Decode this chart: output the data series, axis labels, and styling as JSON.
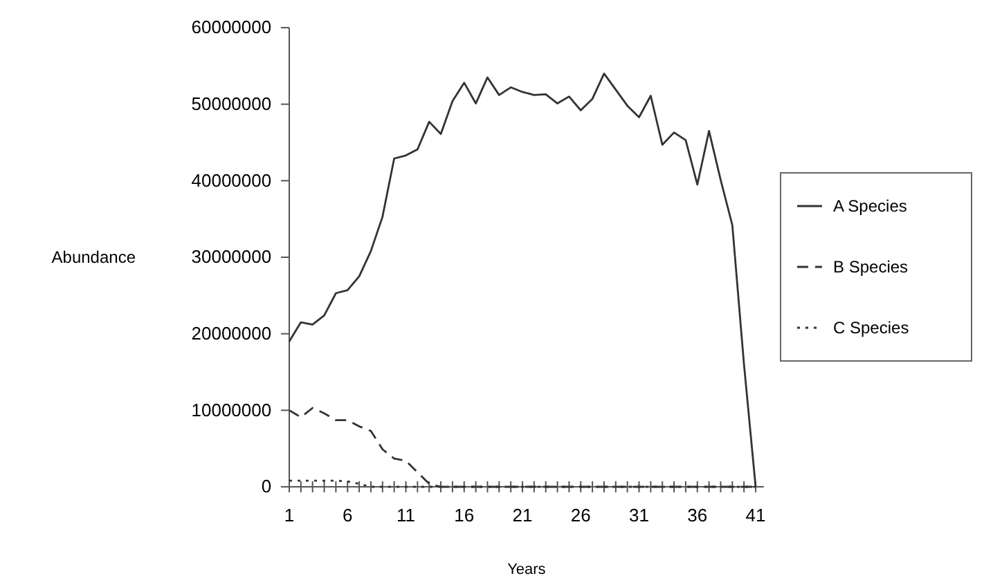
{
  "chart_data": {
    "type": "line",
    "xlabel": "Years",
    "ylabel": "Abundance",
    "x": [
      1,
      2,
      3,
      4,
      5,
      6,
      7,
      8,
      9,
      10,
      11,
      12,
      13,
      14,
      15,
      16,
      17,
      18,
      19,
      20,
      21,
      22,
      23,
      24,
      25,
      26,
      27,
      28,
      29,
      30,
      31,
      32,
      33,
      34,
      35,
      36,
      37,
      38,
      39,
      40,
      41
    ],
    "series": [
      {
        "name": "A Species",
        "color": "#333333",
        "line_style": "solid",
        "values": [
          19000000,
          21500000,
          21200000,
          22400000,
          25300000,
          25700000,
          27500000,
          30800000,
          35300000,
          42900000,
          43300000,
          44100000,
          47700000,
          46100000,
          50400000,
          52800000,
          50100000,
          53500000,
          51200000,
          52200000,
          51600000,
          51200000,
          51300000,
          50100000,
          51000000,
          49200000,
          50700000,
          54000000,
          51900000,
          49800000,
          48300000,
          51100000,
          44700000,
          46300000,
          45300000,
          39500000,
          46500000,
          40100000,
          34200000,
          16000000,
          0
        ]
      },
      {
        "name": "B Species",
        "color": "#333333",
        "line_style": "dashed",
        "values": [
          10000000,
          9100000,
          10300000,
          9600000,
          8700000,
          8700000,
          7900000,
          7300000,
          4900000,
          3700000,
          3400000,
          1900000,
          400000,
          0,
          0,
          0,
          0,
          0,
          0,
          0,
          0,
          0,
          0,
          0,
          0,
          0,
          0,
          0,
          0,
          0,
          0,
          0,
          0,
          0,
          0,
          0,
          0,
          0,
          0,
          0,
          0
        ]
      },
      {
        "name": "C Species",
        "color": "#333333",
        "line_style": "dotted",
        "values": [
          800000,
          800000,
          800000,
          800000,
          800000,
          700000,
          400000,
          0,
          0,
          0,
          0,
          0,
          0,
          0,
          0,
          0,
          0,
          0,
          0,
          0,
          0,
          0,
          0,
          0,
          0,
          0,
          0,
          0,
          0,
          0,
          0,
          0,
          0,
          0,
          0,
          0,
          0,
          0,
          0,
          0,
          0
        ]
      }
    ],
    "xlim": [
      1,
      41.7
    ],
    "xticks": [
      1,
      {
        "value": 2,
        "label": null
      },
      {
        "value": 3,
        "label": null
      },
      {
        "value": 4,
        "label": null
      },
      {
        "value": 5,
        "label": null
      },
      6,
      {
        "value": 7,
        "label": null
      },
      {
        "value": 8,
        "label": null
      },
      {
        "value": 9,
        "label": null
      },
      {
        "value": 10,
        "label": null
      },
      11,
      {
        "value": 12,
        "label": null
      },
      {
        "value": 13,
        "label": null
      },
      {
        "value": 14,
        "label": null
      },
      {
        "value": 15,
        "label": null
      },
      16,
      {
        "value": 17,
        "label": null
      },
      {
        "value": 18,
        "label": null
      },
      {
        "value": 19,
        "label": null
      },
      {
        "value": 20,
        "label": null
      },
      21,
      {
        "value": 22,
        "label": null
      },
      {
        "value": 23,
        "label": null
      },
      {
        "value": 24,
        "label": null
      },
      {
        "value": 25,
        "label": null
      },
      26,
      {
        "value": 27,
        "label": null
      },
      {
        "value": 28,
        "label": null
      },
      {
        "value": 29,
        "label": null
      },
      {
        "value": 30,
        "label": null
      },
      31,
      {
        "value": 32,
        "label": null
      },
      {
        "value": 33,
        "label": null
      },
      {
        "value": 34,
        "label": null
      },
      {
        "value": 35,
        "label": null
      },
      36,
      {
        "value": 37,
        "label": null
      },
      {
        "value": 38,
        "label": null
      },
      {
        "value": 39,
        "label": null
      },
      {
        "value": 40,
        "label": null
      },
      41
    ],
    "ylim": [
      0,
      60000000
    ],
    "yticks": [
      0,
      10000000,
      20000000,
      30000000,
      40000000,
      50000000,
      60000000
    ],
    "legend": "right",
    "grid": false
  }
}
